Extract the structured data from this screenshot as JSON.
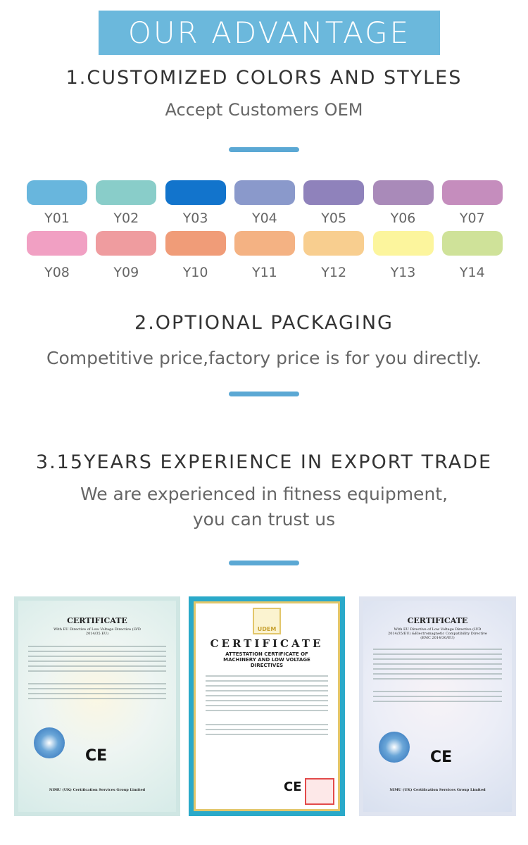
{
  "banner": "OUR ADVANTAGE",
  "sections": [
    {
      "title": "1.CUSTOMIZED COLORS AND STYLES",
      "subtitle": "Accept Customers OEM"
    },
    {
      "title": "2.OPTIONAL PACKAGING",
      "subtitle": "Competitive price,factory price is for you directly."
    },
    {
      "title": "3.15YEARS EXPERIENCE IN EXPORT TRADE",
      "subtitle": "We are experienced in fitness equipment,",
      "subtitle2": "you can trust us"
    }
  ],
  "swatches": [
    {
      "label": "Y01",
      "color": "#68b6dd"
    },
    {
      "label": "Y02",
      "color": "#89cdc9"
    },
    {
      "label": "Y03",
      "color": "#1274cc"
    },
    {
      "label": "Y04",
      "color": "#8a99cb"
    },
    {
      "label": "Y05",
      "color": "#8f82bb"
    },
    {
      "label": "Y06",
      "color": "#a98ab9"
    },
    {
      "label": "Y07",
      "color": "#c58dbd"
    },
    {
      "label": "Y08",
      "color": "#f1a0c3"
    },
    {
      "label": "Y09",
      "color": "#ef9c9f"
    },
    {
      "label": "Y10",
      "color": "#f09c78"
    },
    {
      "label": "Y11",
      "color": "#f4b283"
    },
    {
      "label": "Y12",
      "color": "#f8ce8f"
    },
    {
      "label": "Y13",
      "color": "#fcf59d"
    },
    {
      "label": "Y14",
      "color": "#cfe299"
    }
  ],
  "certificates": [
    {
      "title": "CERTIFICATE",
      "subtitle": "With EU Directive of Low Voltage Directive (LVD 2014/35 EU)",
      "footer": "NIMU (UK) Certification Services Group Limited"
    },
    {
      "logo": "UDEM",
      "title": "CERTIFICATE",
      "subtitle": "ATTESTATION CERTIFICATE OF MACHINERY AND LOW VOLTAGE DIRECTIVES"
    },
    {
      "title": "CERTIFICATE",
      "subtitle": "With EU Directive of Low Voltage Directive (LVD 2014/35/EU) &Electromagnetic Compatibility Directive (EMC 2014/30/EU)",
      "footer": "NIMU (UK) Certification Services Group Limited"
    }
  ],
  "ce_mark": "CE"
}
